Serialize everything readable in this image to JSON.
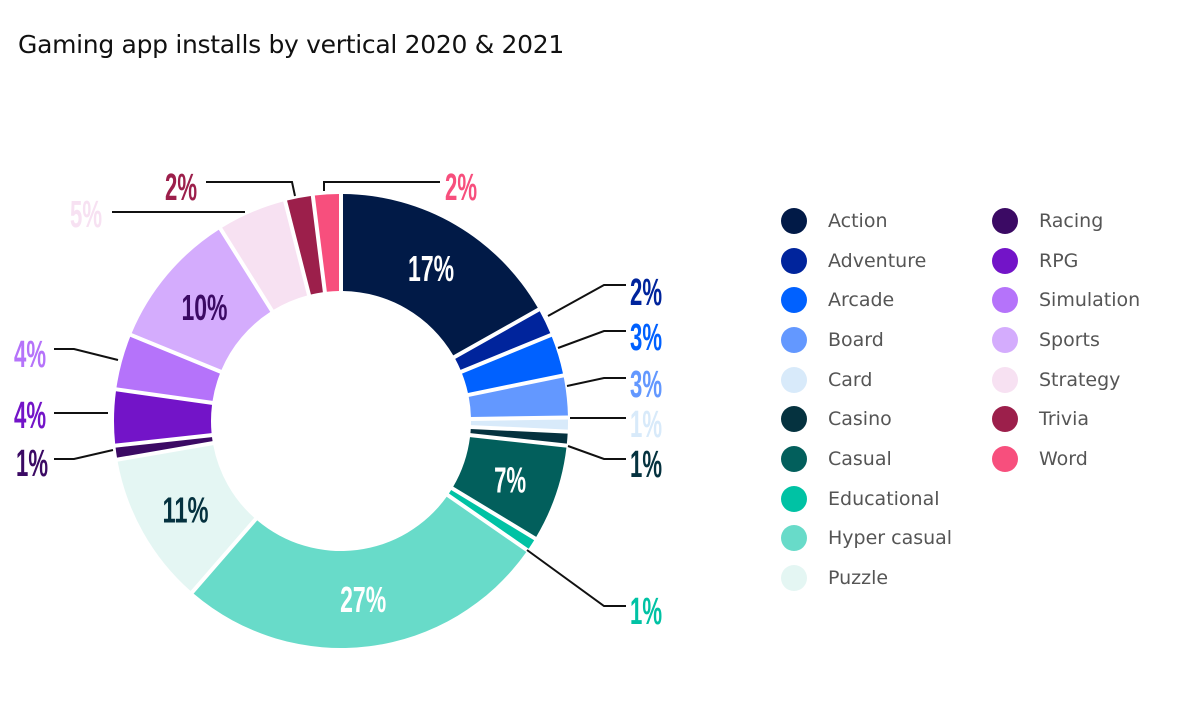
{
  "chart_data": {
    "type": "pie",
    "subtype": "donut",
    "title": "Gaming app installs by vertical 2020 & 2021",
    "unit": "%",
    "start": "12 o'clock",
    "direction": "clockwise",
    "slices": [
      {
        "label": "Action",
        "value": 17,
        "display": "17%",
        "color": "#011a47",
        "label_color": "#ffffff",
        "label_placement": "inside"
      },
      {
        "label": "Adventure",
        "value": 2,
        "display": "2%",
        "color": "#00249c",
        "label_color": "#00249c",
        "label_placement": "outside-right"
      },
      {
        "label": "Arcade",
        "value": 3,
        "display": "3%",
        "color": "#0061ff",
        "label_color": "#0061ff",
        "label_placement": "outside-right"
      },
      {
        "label": "Board",
        "value": 3,
        "display": "3%",
        "color": "#6398ff",
        "label_color": "#6398ff",
        "label_placement": "outside-right"
      },
      {
        "label": "Card",
        "value": 1,
        "display": "1%",
        "color": "#d8eafa",
        "label_color": "#d8eafa",
        "label_placement": "outside-right"
      },
      {
        "label": "Casino",
        "value": 1,
        "display": "1%",
        "color": "#05323f",
        "label_color": "#05323f",
        "label_placement": "outside-right"
      },
      {
        "label": "Casual",
        "value": 7,
        "display": "7%",
        "color": "#025f5c",
        "label_color": "#ffffff",
        "label_placement": "inside"
      },
      {
        "label": "Educational",
        "value": 1,
        "display": "1%",
        "color": "#00c2a4",
        "label_color": "#00c2a4",
        "label_placement": "outside-right"
      },
      {
        "label": "Hyper casual",
        "value": 27,
        "display": "27%",
        "color": "#68dbc9",
        "label_color": "#ffffff",
        "label_placement": "inside"
      },
      {
        "label": "Puzzle",
        "value": 11,
        "display": "11%",
        "color": "#e4f6f3",
        "label_color": "#05323f",
        "label_placement": "inside"
      },
      {
        "label": "Racing",
        "value": 1,
        "display": "1%",
        "color": "#3b0a64",
        "label_color": "#3b0a64",
        "label_placement": "outside-left"
      },
      {
        "label": "RPG",
        "value": 4,
        "display": "4%",
        "color": "#7314c8",
        "label_color": "#7314c8",
        "label_placement": "outside-left"
      },
      {
        "label": "Simulation",
        "value": 4,
        "display": "4%",
        "color": "#b573fa",
        "label_color": "#b573fa",
        "label_placement": "outside-left"
      },
      {
        "label": "Sports",
        "value": 10,
        "display": "10%",
        "color": "#d4acfd",
        "label_color": "#3b0a64",
        "label_placement": "inside"
      },
      {
        "label": "Strategy",
        "value": 5,
        "display": "5%",
        "color": "#f7e1f2",
        "label_color": "#f7e1f2",
        "label_placement": "outside-left"
      },
      {
        "label": "Trivia",
        "value": 2,
        "display": "2%",
        "color": "#9c1f4b",
        "label_color": "#9c1f4b",
        "label_placement": "outside-top"
      },
      {
        "label": "Word",
        "value": 2,
        "display": "2%",
        "color": "#f74f7d",
        "label_color": "#f74f7d",
        "label_placement": "outside-top"
      }
    ],
    "legend": {
      "placement": "right",
      "columns": [
        [
          "Action",
          "Adventure",
          "Arcade",
          "Board",
          "Card",
          "Casino",
          "Casual",
          "Educational",
          "Hyper casual",
          "Puzzle"
        ],
        [
          "Racing",
          "RPG",
          "Simulation",
          "Sports",
          "Strategy",
          "Trivia",
          "Word"
        ]
      ]
    }
  }
}
